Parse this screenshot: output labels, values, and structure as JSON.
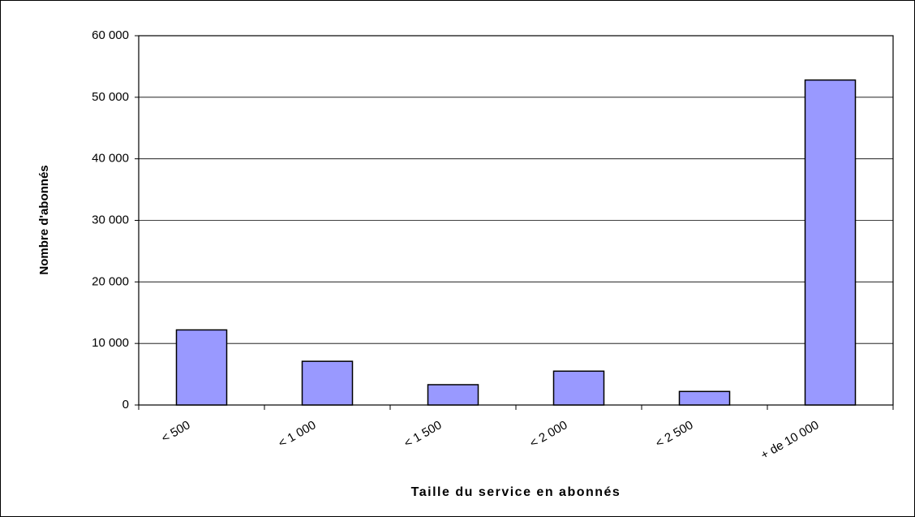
{
  "chart_data": {
    "type": "bar",
    "x_label": "Taille du service en abonnés",
    "y_label": "Nombre d'abonnés",
    "categories": [
      "< 500",
      "< 1 000",
      "< 1 500",
      "< 2 000",
      "< 2 500",
      "+ de 10 000"
    ],
    "values": [
      12200,
      7100,
      3300,
      5500,
      2200,
      52800
    ],
    "color": "#9999ff",
    "ylim": [
      0,
      60000
    ],
    "yticks": [
      0,
      {
        "value": 10000,
        "label": "10 000"
      },
      {
        "value": 20000,
        "label": "20 000"
      },
      {
        "value": 30000,
        "label": "30 000"
      },
      {
        "value": 40000,
        "label": "40 000"
      },
      {
        "value": 50000,
        "label": "50 000"
      },
      {
        "value": 60000,
        "label": "60 000"
      }
    ],
    "grid": true
  }
}
